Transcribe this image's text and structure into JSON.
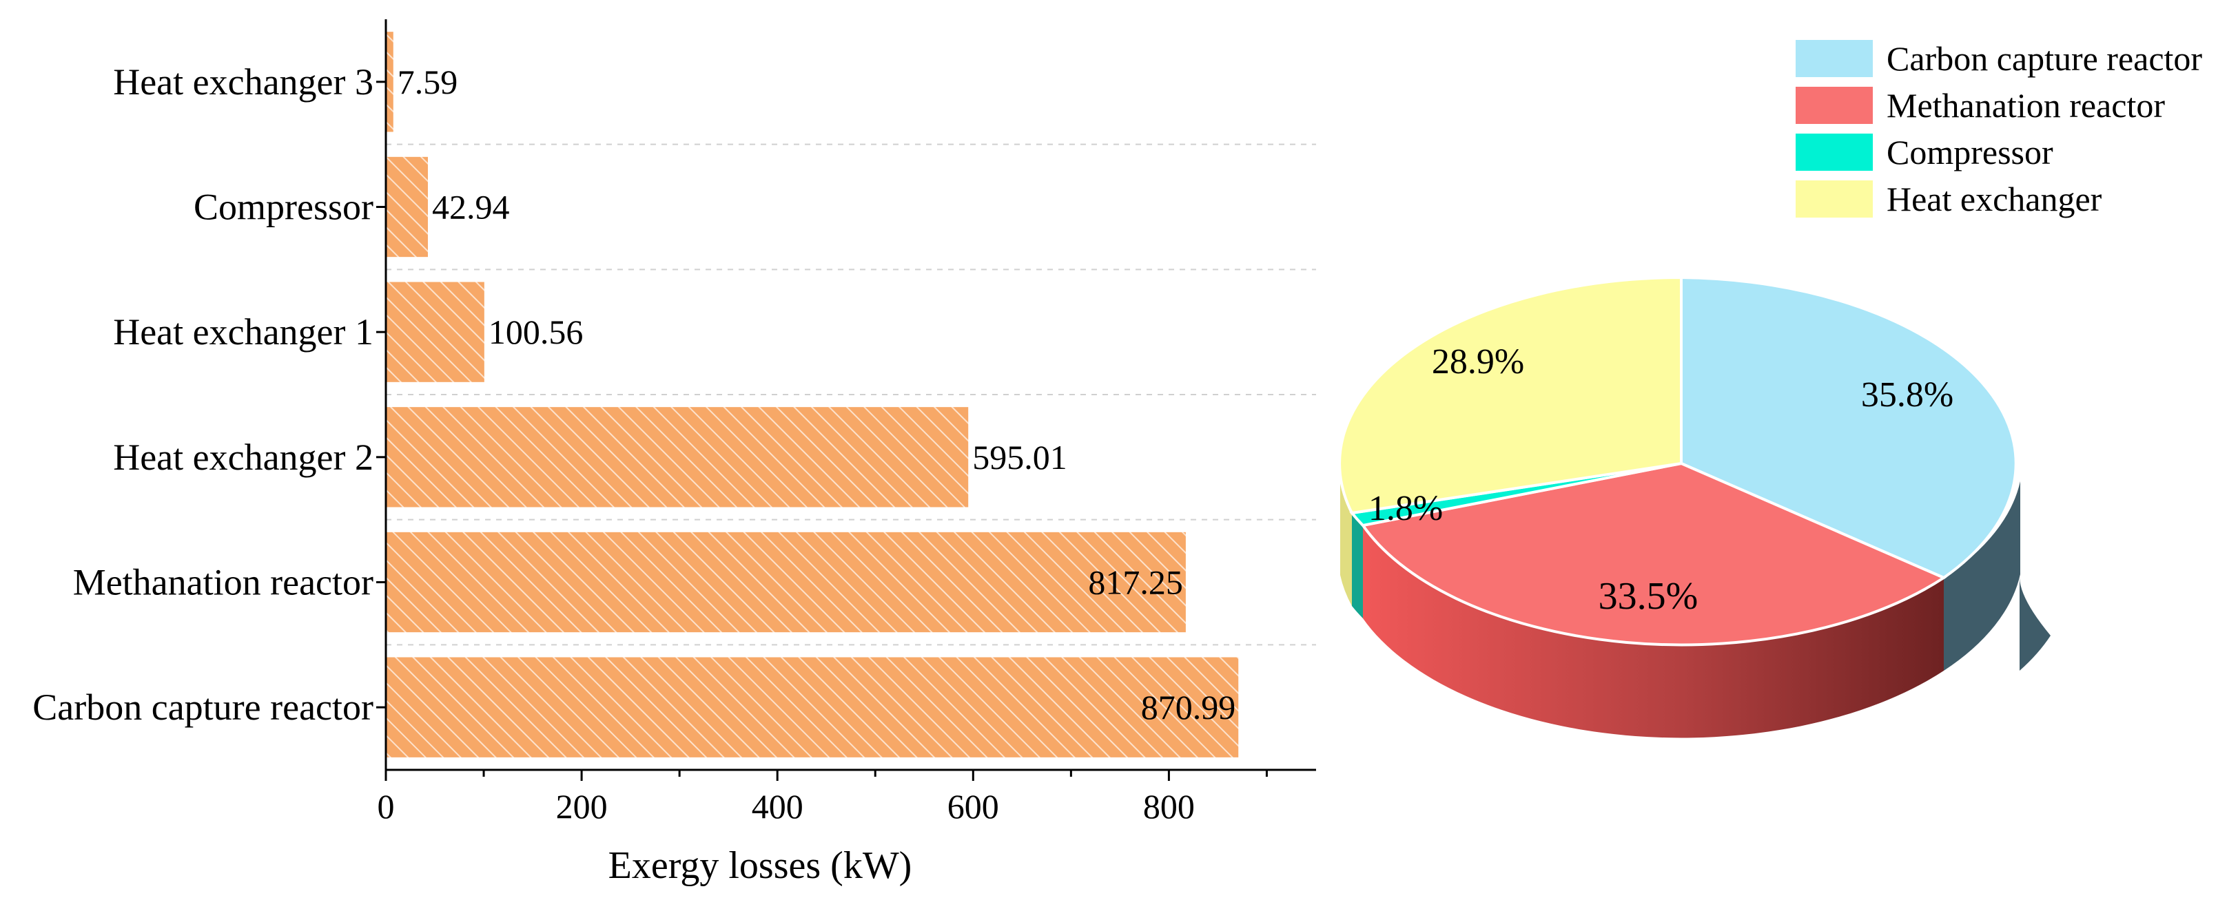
{
  "chart_data": [
    {
      "type": "bar",
      "orientation": "horizontal",
      "categories": [
        "Heat exchanger 3",
        "Compressor",
        "Heat exchanger 1",
        "Heat exchanger 2",
        "Methanation reactor",
        "Carbon capture reactor"
      ],
      "values": [
        7.59,
        42.94,
        100.56,
        595.01,
        817.25,
        870.99
      ],
      "value_labels": [
        "7.59",
        "42.94",
        "100.56",
        "595.01",
        "817.25",
        "870.99"
      ],
      "xlabel": "Exergy losses (kW)",
      "ylabel": "",
      "xlim": [
        0,
        950
      ],
      "xticks": [
        0,
        200,
        400,
        600,
        800
      ],
      "xtick_labels": [
        "0",
        "200",
        "400",
        "600",
        "800"
      ],
      "bar_color": "#f7a867",
      "bar_pattern": "diagonal hatch",
      "grid": "horizontal dashed"
    },
    {
      "type": "pie",
      "style": "3d",
      "labels": [
        "Carbon capture reactor",
        "Methanation reactor",
        "Compressor",
        "Heat exchanger"
      ],
      "values": [
        35.8,
        33.5,
        1.8,
        28.9
      ],
      "value_labels": [
        "35.8%",
        "33.5%",
        "1.8%",
        "28.9%"
      ],
      "colors": [
        "#aae6f8",
        "#f87272",
        "#00f2d3",
        "#fdfca0"
      ],
      "side_colors": [
        "#3f5c69",
        "#8e2a2a",
        "#12a58f",
        "#e0dd80"
      ],
      "legend_position": "top-right"
    }
  ]
}
